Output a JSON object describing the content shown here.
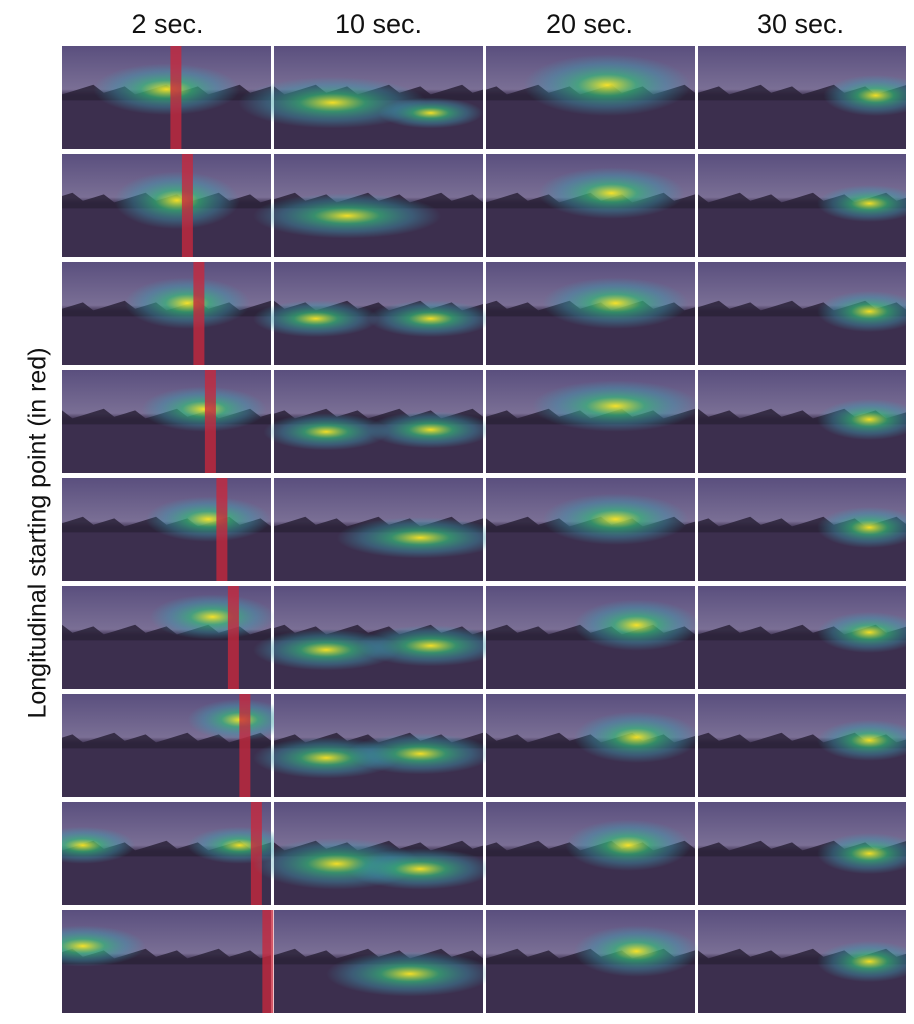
{
  "columns": [
    "2 sec.",
    "10 sec.",
    "20 sec.",
    "30 sec."
  ],
  "row_axis_label": "Longitudinal starting point (in red)",
  "rows": 9,
  "start_longitudes": [
    0.545,
    0.6,
    0.655,
    0.71,
    0.765,
    0.82,
    0.875,
    0.93,
    0.985
  ],
  "colors": {
    "sky": "#5a4f7e",
    "horizon": "#7a6f95",
    "ground": "#3c2f4e",
    "start_marker": "#c8283c",
    "heat_low": "#3b9bb0",
    "heat_mid": "#35b779",
    "heat_high": "#fde725",
    "separator": "#ffffff"
  },
  "heatmaps": {
    "col0": [
      [
        [
          0.5,
          0.42,
          0.35,
          0.25
        ]
      ],
      [
        [
          0.55,
          0.45,
          0.3,
          0.28
        ]
      ],
      [
        [
          0.6,
          0.4,
          0.3,
          0.25
        ]
      ],
      [
        [
          0.68,
          0.38,
          0.3,
          0.22
        ]
      ],
      [
        [
          0.7,
          0.4,
          0.3,
          0.22
        ]
      ],
      [
        [
          0.72,
          0.3,
          0.3,
          0.22
        ]
      ],
      [
        [
          0.85,
          0.25,
          0.25,
          0.2
        ]
      ],
      [
        [
          0.1,
          0.42,
          0.25,
          0.18
        ],
        [
          0.85,
          0.42,
          0.25,
          0.18
        ]
      ],
      [
        [
          0.1,
          0.35,
          0.3,
          0.2
        ]
      ]
    ],
    "col1": [
      [
        [
          0.28,
          0.55,
          0.45,
          0.25
        ],
        [
          0.75,
          0.65,
          0.25,
          0.15
        ]
      ],
      [
        [
          0.35,
          0.6,
          0.45,
          0.22
        ]
      ],
      [
        [
          0.2,
          0.55,
          0.3,
          0.18
        ],
        [
          0.75,
          0.55,
          0.3,
          0.18
        ]
      ],
      [
        [
          0.25,
          0.6,
          0.3,
          0.18
        ],
        [
          0.75,
          0.58,
          0.3,
          0.18
        ]
      ],
      [
        [
          0.7,
          0.58,
          0.4,
          0.2
        ]
      ],
      [
        [
          0.25,
          0.62,
          0.35,
          0.2
        ],
        [
          0.75,
          0.58,
          0.35,
          0.2
        ]
      ],
      [
        [
          0.25,
          0.62,
          0.35,
          0.2
        ],
        [
          0.7,
          0.58,
          0.35,
          0.2
        ]
      ],
      [
        [
          0.3,
          0.6,
          0.4,
          0.25
        ],
        [
          0.7,
          0.65,
          0.35,
          0.2
        ]
      ],
      [
        [
          0.65,
          0.62,
          0.4,
          0.22
        ]
      ]
    ],
    "col2": [
      [
        [
          0.58,
          0.38,
          0.4,
          0.3
        ]
      ],
      [
        [
          0.6,
          0.38,
          0.35,
          0.25
        ]
      ],
      [
        [
          0.62,
          0.4,
          0.35,
          0.25
        ]
      ],
      [
        [
          0.62,
          0.35,
          0.4,
          0.25
        ]
      ],
      [
        [
          0.62,
          0.4,
          0.35,
          0.25
        ]
      ],
      [
        [
          0.72,
          0.38,
          0.3,
          0.25
        ]
      ],
      [
        [
          0.72,
          0.42,
          0.3,
          0.25
        ]
      ],
      [
        [
          0.68,
          0.42,
          0.3,
          0.25
        ]
      ],
      [
        [
          0.72,
          0.4,
          0.3,
          0.25
        ]
      ]
    ],
    "col3": [
      [
        [
          0.85,
          0.48,
          0.25,
          0.2
        ]
      ],
      [
        [
          0.82,
          0.48,
          0.25,
          0.18
        ]
      ],
      [
        [
          0.82,
          0.48,
          0.25,
          0.2
        ]
      ],
      [
        [
          0.82,
          0.48,
          0.25,
          0.2
        ]
      ],
      [
        [
          0.82,
          0.48,
          0.25,
          0.2
        ]
      ],
      [
        [
          0.82,
          0.45,
          0.25,
          0.2
        ]
      ],
      [
        [
          0.82,
          0.45,
          0.25,
          0.2
        ]
      ],
      [
        [
          0.82,
          0.5,
          0.25,
          0.2
        ]
      ],
      [
        [
          0.82,
          0.5,
          0.25,
          0.2
        ]
      ]
    ]
  }
}
